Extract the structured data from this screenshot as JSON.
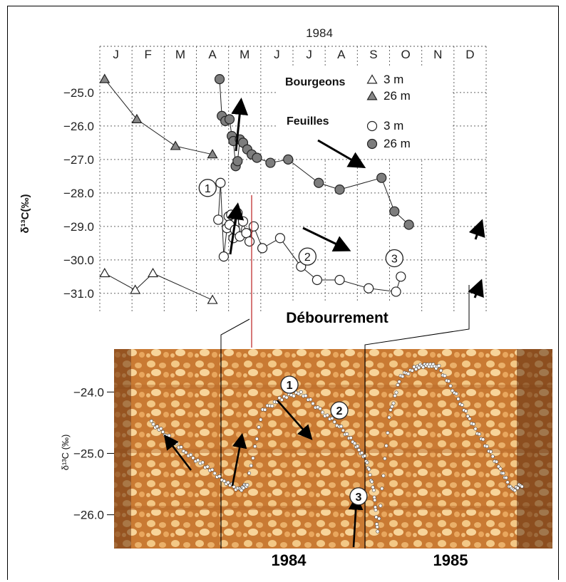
{
  "chart_data": [
    {
      "type": "line",
      "title": "1984",
      "ylabel": "δ¹³C(‰)",
      "months": [
        "J",
        "F",
        "M",
        "A",
        "M",
        "J",
        "J",
        "A",
        "S",
        "O",
        "N",
        "D"
      ],
      "yticks": [
        "-25.0",
        "-26.0",
        "-27.0",
        "-28.0",
        "-29.0",
        "-30.0",
        "-31.0"
      ],
      "ylim": [
        -31.6,
        -24.3
      ],
      "xlim": [
        0,
        12
      ],
      "grid": true,
      "legend": {
        "groups": [
          {
            "heading": "Bourgeons",
            "items": [
              {
                "label": "3 m",
                "marker": "open-triangle"
              },
              {
                "label": "26 m",
                "marker": "filled-triangle"
              }
            ]
          },
          {
            "heading": "Feuilles",
            "items": [
              {
                "label": "3 m",
                "marker": "open-circle"
              },
              {
                "label": "26 m",
                "marker": "filled-circle"
              }
            ]
          }
        ]
      },
      "series": [
        {
          "name": "Bourgeons 26 m",
          "marker": "filled-triangle",
          "x": [
            0.15,
            1.15,
            2.35,
            3.5
          ],
          "y": [
            -24.6,
            -25.8,
            -26.6,
            -26.85
          ]
        },
        {
          "name": "Bourgeons 3 m",
          "marker": "open-triangle",
          "x": [
            0.15,
            1.1,
            1.65,
            3.5
          ],
          "y": [
            -30.4,
            -30.9,
            -30.4,
            -31.2
          ]
        },
        {
          "name": "Feuilles 26 m",
          "marker": "filled-circle",
          "x": [
            3.72,
            3.79,
            3.9,
            4.03,
            4.1,
            4.15,
            4.22,
            4.28,
            4.35,
            4.45,
            4.58,
            4.72,
            4.88,
            5.3,
            5.85,
            6.8,
            7.45,
            8.75,
            9.15,
            9.6
          ],
          "y": [
            -24.6,
            -25.7,
            -25.85,
            -25.8,
            -26.3,
            -26.45,
            -27.2,
            -27.05,
            -26.4,
            -26.5,
            -26.7,
            -26.85,
            -26.95,
            -27.1,
            -27.0,
            -27.7,
            -27.9,
            -27.55,
            -28.55,
            -28.95
          ]
        },
        {
          "name": "Feuilles 3 m",
          "marker": "open-circle",
          "x": [
            3.68,
            3.75,
            3.85,
            3.95,
            4.0,
            4.03,
            4.08,
            4.15,
            4.2,
            4.28,
            4.35,
            4.45,
            4.55,
            4.65,
            4.78,
            5.05,
            5.6,
            6.25,
            6.75,
            7.45,
            8.35,
            9.2,
            9.35
          ],
          "y": [
            -28.8,
            -27.7,
            -29.9,
            -29.05,
            -28.7,
            -28.95,
            -28.65,
            -29.35,
            -29.1,
            -28.6,
            -29.3,
            -28.85,
            -29.2,
            -29.45,
            -29.0,
            -29.65,
            -29.35,
            -30.2,
            -30.6,
            -30.6,
            -30.85,
            -30.95,
            -30.5
          ]
        }
      ],
      "annotations": [
        {
          "text": "1",
          "x": 3.35,
          "y": -27.85
        },
        {
          "text": "2",
          "x": 6.45,
          "y": -29.9
        },
        {
          "text": "3",
          "x": 9.15,
          "y": -29.95
        }
      ]
    },
    {
      "type": "scatter",
      "ylabel": "δ¹³C (‰)",
      "yticks": [
        "-24.0",
        "-25.0",
        "-26.0"
      ],
      "ylim": [
        -26.55,
        -23.3
      ],
      "xlabels": [
        "1984",
        "1985"
      ],
      "annotation_label": "Débourrement",
      "annotations": [
        {
          "text": "1",
          "x": 0.37,
          "y": -23.88
        },
        {
          "text": "2",
          "x": 0.5,
          "y": -24.3
        },
        {
          "text": "3",
          "x": 0.55,
          "y": -25.7
        }
      ],
      "series": [
        {
          "name": "δ¹³C",
          "x": [
            0.01,
            0.05,
            0.1,
            0.15,
            0.2,
            0.24,
            0.26,
            0.3,
            0.35,
            0.4,
            0.45,
            0.5,
            0.54,
            0.57,
            0.59,
            0.6,
            0.63,
            0.66,
            0.7,
            0.73,
            0.76,
            0.8,
            0.84,
            0.88,
            0.92,
            0.95,
            0.98
          ],
          "y": [
            -24.5,
            -24.7,
            -25.0,
            -25.2,
            -25.45,
            -25.6,
            -25.5,
            -24.3,
            -24.1,
            -24.0,
            -24.3,
            -24.55,
            -24.85,
            -25.1,
            -25.6,
            -26.3,
            -24.4,
            -23.75,
            -23.6,
            -23.55,
            -23.6,
            -24.0,
            -24.45,
            -24.85,
            -25.25,
            -25.6,
            -25.5
          ]
        }
      ]
    }
  ]
}
